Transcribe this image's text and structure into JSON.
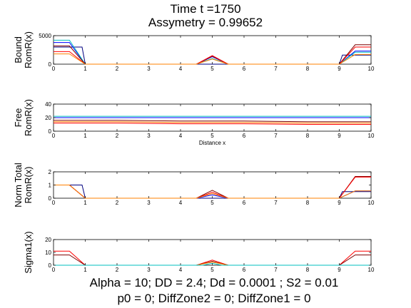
{
  "title": {
    "line1": "Time t =1750",
    "line2": "Assymetry = 0.99652"
  },
  "footer": {
    "line1": "Alpha = 10;  DD =  2.4; Dd = 0.0001 ; S2 = 0.01",
    "line2": "p0 = 0; DiffZone2 = 0; DiffZone1 = 0"
  },
  "colors": {
    "blue": "#0000ff",
    "darkblue": "#00007f",
    "green": "#008000",
    "red": "#ff0000",
    "cyan": "#00bfbf",
    "darkred": "#7f0000",
    "orange": "#ff8000",
    "magenta": "#bf00bf"
  },
  "chart_data": [
    {
      "type": "line",
      "ylabel": [
        "Bound",
        "RomR(x)"
      ],
      "xlabel": "",
      "xlim": [
        0,
        10
      ],
      "ylim": [
        0,
        5000
      ],
      "xticks": [
        0,
        1,
        2,
        3,
        4,
        5,
        6,
        7,
        8,
        9,
        10
      ],
      "yticks": [
        0,
        5000
      ],
      "series": [
        {
          "color": "darkblue",
          "x": [
            0,
            0.9,
            1.0,
            1.05,
            9.0,
            9.1,
            9.6,
            10
          ],
          "y": [
            3000,
            3000,
            0,
            0,
            0,
            1600,
            1600,
            1600
          ]
        },
        {
          "color": "blue",
          "x": [
            0,
            0.5,
            1.0,
            1.05,
            4.5,
            5.0,
            5.5,
            9.0,
            9.5,
            10
          ],
          "y": [
            3800,
            3800,
            0,
            0,
            0,
            1300,
            0,
            0,
            2300,
            2300
          ]
        },
        {
          "color": "cyan",
          "x": [
            0,
            0.5,
            1.0,
            1.05,
            4.5,
            5.0,
            5.5,
            9.0,
            9.5,
            10
          ],
          "y": [
            4200,
            4200,
            0,
            0,
            0,
            1000,
            0,
            0,
            2100,
            2100
          ]
        },
        {
          "color": "darkred",
          "x": [
            0,
            0.5,
            1.0,
            1.05,
            4.5,
            5.0,
            5.5,
            9.0,
            9.5,
            10
          ],
          "y": [
            3200,
            3200,
            0,
            0,
            0,
            1400,
            0,
            0,
            3400,
            3400
          ]
        },
        {
          "color": "red",
          "x": [
            0,
            0.5,
            1.0,
            1.05,
            4.5,
            5.0,
            5.5,
            9.0,
            9.5,
            10
          ],
          "y": [
            2200,
            2200,
            0,
            0,
            0,
            1500,
            0,
            0,
            3000,
            3000
          ]
        },
        {
          "color": "orange",
          "x": [
            0,
            0.5,
            1.0,
            1.05,
            4.5,
            5.0,
            5.5,
            9.0,
            9.5,
            10
          ],
          "y": [
            1800,
            1800,
            0,
            0,
            0,
            900,
            0,
            0,
            1700,
            1700
          ]
        }
      ]
    },
    {
      "type": "line",
      "ylabel": [
        "Free",
        "RomR(x)"
      ],
      "xlabel": "Distance x",
      "xlim": [
        0,
        10
      ],
      "ylim": [
        0,
        40
      ],
      "xticks": [
        0,
        1,
        2,
        3,
        4,
        5,
        6,
        7,
        8,
        9,
        10
      ],
      "yticks": [
        0,
        20,
        40
      ],
      "series": [
        {
          "color": "cyan",
          "x": [
            0,
            10
          ],
          "y": [
            22,
            22
          ]
        },
        {
          "color": "blue",
          "x": [
            0,
            10
          ],
          "y": [
            20,
            20
          ]
        },
        {
          "color": "darkred",
          "x": [
            0,
            2,
            4,
            6,
            8,
            10
          ],
          "y": [
            16,
            16,
            15,
            15,
            14,
            14
          ]
        },
        {
          "color": "orange",
          "x": [
            0,
            2,
            4,
            6,
            8,
            10
          ],
          "y": [
            14,
            14,
            13,
            13,
            12,
            12
          ]
        },
        {
          "color": "red",
          "x": [
            0,
            2,
            4,
            6,
            8,
            10
          ],
          "y": [
            12,
            12,
            11,
            11,
            10,
            10
          ]
        }
      ]
    },
    {
      "type": "line",
      "ylabel": [
        "Norm Total",
        "RomR(x)"
      ],
      "xlabel": "",
      "xlim": [
        0,
        10
      ],
      "ylim": [
        0,
        2
      ],
      "xticks": [
        0,
        1,
        2,
        3,
        4,
        5,
        6,
        7,
        8,
        9,
        10
      ],
      "yticks": [
        0,
        1,
        2
      ],
      "series": [
        {
          "color": "darkblue",
          "x": [
            0,
            0.9,
            1.0,
            1.05,
            9.0,
            9.1,
            9.6,
            10
          ],
          "y": [
            1.0,
            1.0,
            0,
            0,
            0,
            0.5,
            0.5,
            0.5
          ]
        },
        {
          "color": "blue",
          "x": [
            0,
            0.5,
            1.0,
            1.05,
            4.5,
            5.0,
            5.5,
            9.0,
            9.5,
            10
          ],
          "y": [
            1.0,
            1.0,
            0,
            0,
            0,
            0.25,
            0,
            0,
            0.55,
            0.55
          ]
        },
        {
          "color": "darkred",
          "x": [
            0,
            0.5,
            1.0,
            1.05,
            4.5,
            5.0,
            5.5,
            9.0,
            9.5,
            10
          ],
          "y": [
            1.0,
            1.0,
            0,
            0,
            0,
            0.6,
            0,
            0,
            1.65,
            1.65
          ]
        },
        {
          "color": "red",
          "x": [
            0,
            0.5,
            1.0,
            1.05,
            4.5,
            5.0,
            5.5,
            9.0,
            9.5,
            10
          ],
          "y": [
            1.0,
            1.0,
            0,
            0,
            0,
            0.45,
            0,
            0,
            1.6,
            1.6
          ]
        },
        {
          "color": "orange",
          "x": [
            0,
            0.5,
            1.0,
            1.05,
            4.5,
            5.0,
            5.5,
            9.0,
            9.5,
            10
          ],
          "y": [
            1.0,
            1.0,
            0,
            0,
            0,
            0.35,
            0,
            0,
            0.55,
            0.55
          ]
        }
      ]
    },
    {
      "type": "line",
      "ylabel": [
        "Sigma1(x)"
      ],
      "xlabel": "",
      "xlim": [
        0,
        10
      ],
      "ylim": [
        0,
        20
      ],
      "xticks": [
        0,
        1,
        2,
        3,
        4,
        5,
        6,
        7,
        8,
        9,
        10
      ],
      "yticks": [
        0,
        10,
        20
      ],
      "series": [
        {
          "color": "red",
          "x": [
            0,
            0.5,
            1.0,
            1.05,
            4.5,
            5.0,
            5.5,
            9.0,
            9.5,
            10
          ],
          "y": [
            11,
            11,
            0,
            0,
            0,
            4,
            0,
            0,
            11,
            11
          ]
        },
        {
          "color": "darkred",
          "x": [
            0,
            0.5,
            1.0,
            1.05,
            4.5,
            5.0,
            5.5,
            9.0,
            9.5,
            10
          ],
          "y": [
            8,
            8,
            0,
            0,
            0,
            3,
            0,
            0,
            8,
            8
          ]
        },
        {
          "color": "orange",
          "x": [
            0,
            0.5,
            1.0,
            1.05,
            4.5,
            5.0,
            5.5,
            9.0,
            9.5,
            10
          ],
          "y": [
            0,
            0,
            0,
            0,
            0,
            2.5,
            0,
            0,
            0,
            0
          ]
        },
        {
          "color": "cyan",
          "x": [
            0,
            1.0,
            4.7,
            5.0,
            5.3,
            10
          ],
          "y": [
            0,
            0,
            0,
            1.5,
            0,
            0
          ]
        }
      ]
    }
  ]
}
